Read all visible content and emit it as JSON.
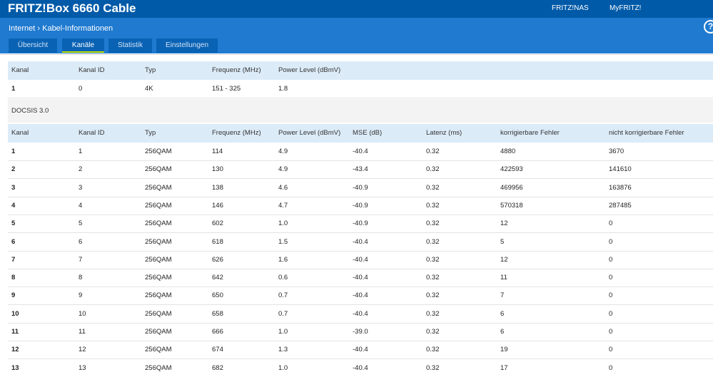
{
  "header": {
    "title": "FRITZ!Box 6660 Cable",
    "links": [
      "FRITZ!NAS",
      "MyFRITZ!"
    ],
    "breadcrumb": [
      "Internet",
      "Kabel-Informationen"
    ],
    "help": "?"
  },
  "tabs": [
    {
      "label": "Übersicht",
      "active": false
    },
    {
      "label": "Kanäle",
      "active": true
    },
    {
      "label": "Statistik",
      "active": false
    },
    {
      "label": "Einstellungen",
      "active": false
    }
  ],
  "table1": {
    "columns": [
      "Kanal",
      "Kanal ID",
      "Typ",
      "Frequenz (MHz)",
      "Power Level (dBmV)"
    ],
    "rows": [
      [
        "1",
        "0",
        "4K",
        "151 - 325",
        "1.8"
      ]
    ]
  },
  "section": "DOCSIS 3.0",
  "table2": {
    "columns": [
      "Kanal",
      "Kanal ID",
      "Typ",
      "Frequenz (MHz)",
      "Power Level (dBmV)",
      "MSE (dB)",
      "Latenz (ms)",
      "korrigierbare Fehler",
      "nicht korrigierbare Fehler"
    ],
    "rows": [
      [
        "1",
        "1",
        "256QAM",
        "114",
        "4.9",
        "-40.4",
        "0.32",
        "4880",
        "3670"
      ],
      [
        "2",
        "2",
        "256QAM",
        "130",
        "4.9",
        "-43.4",
        "0.32",
        "422593",
        "141610"
      ],
      [
        "3",
        "3",
        "256QAM",
        "138",
        "4.6",
        "-40.9",
        "0.32",
        "469956",
        "163876"
      ],
      [
        "4",
        "4",
        "256QAM",
        "146",
        "4.7",
        "-40.9",
        "0.32",
        "570318",
        "287485"
      ],
      [
        "5",
        "5",
        "256QAM",
        "602",
        "1.0",
        "-40.9",
        "0.32",
        "12",
        "0"
      ],
      [
        "6",
        "6",
        "256QAM",
        "618",
        "1.5",
        "-40.4",
        "0.32",
        "5",
        "0"
      ],
      [
        "7",
        "7",
        "256QAM",
        "626",
        "1.6",
        "-40.4",
        "0.32",
        "12",
        "0"
      ],
      [
        "8",
        "8",
        "256QAM",
        "642",
        "0.6",
        "-40.4",
        "0.32",
        "11",
        "0"
      ],
      [
        "9",
        "9",
        "256QAM",
        "650",
        "0.7",
        "-40.4",
        "0.32",
        "7",
        "0"
      ],
      [
        "10",
        "10",
        "256QAM",
        "658",
        "0.7",
        "-40.4",
        "0.32",
        "6",
        "0"
      ],
      [
        "11",
        "11",
        "256QAM",
        "666",
        "1.0",
        "-39.0",
        "0.32",
        "6",
        "0"
      ],
      [
        "12",
        "12",
        "256QAM",
        "674",
        "1.3",
        "-40.4",
        "0.32",
        "19",
        "0"
      ],
      [
        "13",
        "13",
        "256QAM",
        "682",
        "1.0",
        "-40.4",
        "0.32",
        "17",
        "0"
      ]
    ]
  }
}
